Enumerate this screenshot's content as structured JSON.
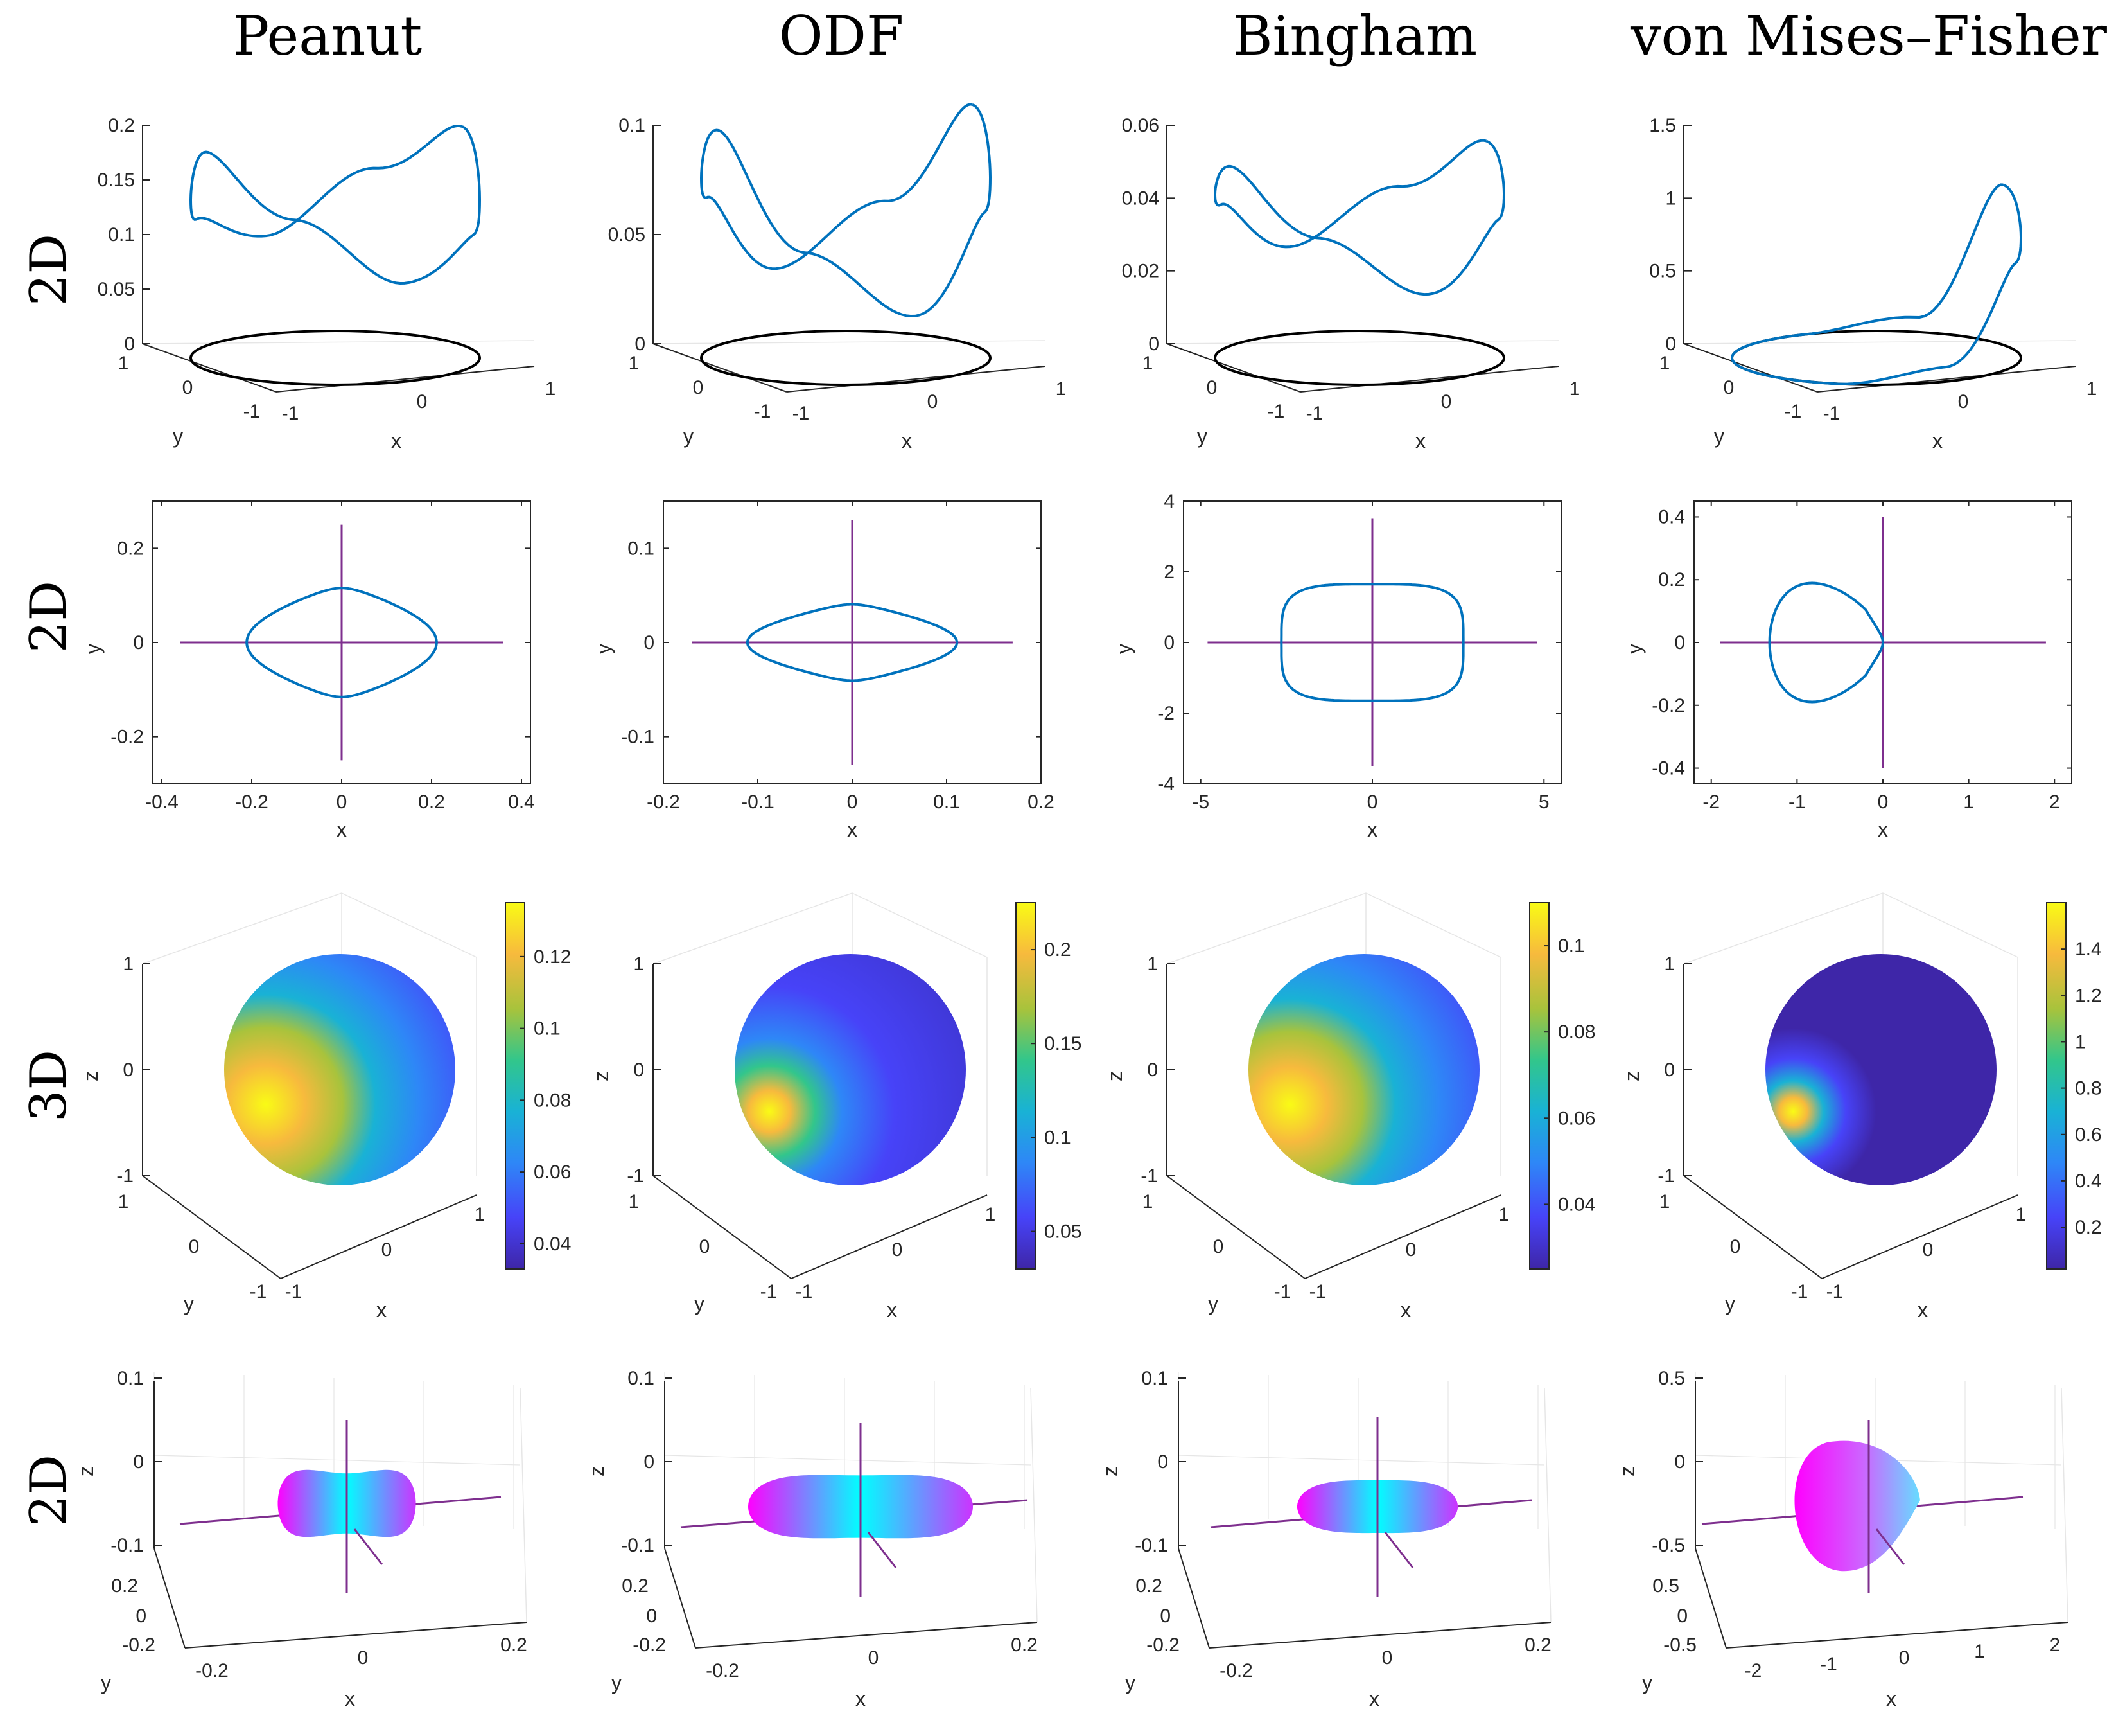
{
  "column_titles": [
    "Peanut",
    "ODF",
    "Bingham",
    "von Mises–Fisher"
  ],
  "row_titles": [
    "2D",
    "2D",
    "3D",
    "2D"
  ],
  "colors": {
    "curve": "#0072BD",
    "circle": "#000000",
    "axis_lines": "#7E2F8E",
    "axes": "#262626",
    "grid": "#e6e6e6",
    "colormap": [
      "#3e26a8",
      "#4743f8",
      "#2e87f7",
      "#19b2d5",
      "#32c68b",
      "#a8c33c",
      "#f7ba3d",
      "#f9fb15"
    ],
    "surface_gradient": [
      "#ff00ff",
      "#00ffff",
      "#ff00ff"
    ]
  },
  "chart_data": [
    {
      "type": "line",
      "row": 1,
      "panel": "peanut-3d-curve",
      "view": "3d",
      "xlabel": "x",
      "ylabel": "y",
      "x_ticks": [
        "-1",
        "0",
        "1"
      ],
      "y_ticks": [
        "-1",
        "0",
        "1"
      ],
      "z_ticks": [
        "0",
        "0.05",
        "0.1",
        "0.15",
        "0.2"
      ],
      "zlim": [
        0,
        0.2
      ],
      "series": [
        {
          "values": [
            0.2,
            0.15,
            0.09,
            0.12,
            0.2,
            0.15,
            0.09,
            0.12
          ]
        }
      ]
    },
    {
      "type": "line",
      "row": 1,
      "panel": "odf-3d-curve",
      "view": "3d",
      "xlabel": "x",
      "ylabel": "y",
      "x_ticks": [
        "-1",
        "0",
        "1"
      ],
      "y_ticks": [
        "-1",
        "0",
        "1"
      ],
      "z_ticks": [
        "0",
        "0.05",
        "0.1"
      ],
      "zlim": [
        0,
        0.1
      ],
      "series": [
        {
          "values": [
            0.11,
            0.06,
            0.03,
            0.07,
            0.11,
            0.06,
            0.03,
            0.07
          ]
        }
      ]
    },
    {
      "type": "line",
      "row": 1,
      "panel": "bingham-3d-curve",
      "view": "3d",
      "xlabel": "x",
      "ylabel": "y",
      "x_ticks": [
        "-1",
        "0",
        "1"
      ],
      "y_ticks": [
        "-1",
        "0",
        "1"
      ],
      "z_ticks": [
        "0",
        "0.02",
        "0.04",
        "0.06"
      ],
      "zlim": [
        0,
        0.06
      ],
      "series": [
        {
          "values": [
            0.056,
            0.04,
            0.024,
            0.04,
            0.056,
            0.04,
            0.024,
            0.04
          ]
        }
      ]
    },
    {
      "type": "line",
      "row": 1,
      "panel": "vmf-3d-curve",
      "view": "3d",
      "xlabel": "x",
      "ylabel": "y",
      "x_ticks": [
        "-1",
        "0",
        "1"
      ],
      "y_ticks": [
        "-1",
        "0",
        "1"
      ],
      "z_ticks": [
        "0",
        "0.5",
        "1",
        "1.5"
      ],
      "zlim": [
        0,
        1.5
      ],
      "series": [
        {
          "values": [
            1.1,
            0.1,
            0.0,
            0.0,
            0.0,
            0.0,
            0.1,
            0.7
          ]
        }
      ]
    },
    {
      "type": "line",
      "row": 2,
      "panel": "peanut-polar",
      "xlabel": "x",
      "ylabel": "y",
      "xlim": [
        -0.42,
        0.42
      ],
      "ylim": [
        -0.3,
        0.3
      ],
      "x_ticks": [
        -0.4,
        -0.2,
        0,
        0.2,
        0.4
      ],
      "y_ticks": [
        -0.2,
        0,
        0.2
      ],
      "x_tick_labels": [
        "-0.4",
        "-0.2",
        "0",
        "0.2",
        "0.4"
      ],
      "y_tick_labels": [
        "-0.2",
        "0",
        "0.2"
      ],
      "axis_half_length": [
        0.36,
        0.25
      ],
      "shape_c": [
        0.107,
        0.1
      ],
      "shape_offset": 0
    },
    {
      "type": "line",
      "row": 2,
      "panel": "odf-polar",
      "xlabel": "x",
      "ylabel": "y",
      "xlim": [
        -0.2,
        0.2
      ],
      "ylim": [
        -0.15,
        0.15
      ],
      "x_ticks": [
        -0.2,
        -0.1,
        0,
        0.1,
        0.2
      ],
      "y_ticks": [
        -0.1,
        0,
        0.1
      ],
      "x_tick_labels": [
        "-0.2",
        "-0.1",
        "0",
        "0.1",
        "0.2"
      ],
      "y_tick_labels": [
        "-0.1",
        "0",
        "0.1"
      ],
      "axis_half_length": [
        0.17,
        0.13
      ],
      "shape_c": [
        0.052,
        0.059
      ],
      "shape_offset": 0
    },
    {
      "type": "line",
      "row": 2,
      "panel": "bingham-polar",
      "xlabel": "x",
      "ylabel": "y",
      "xlim": [
        -5.5,
        5.5
      ],
      "ylim": [
        -4,
        4
      ],
      "x_ticks": [
        -5,
        0,
        5
      ],
      "y_ticks": [
        -4,
        -2,
        0,
        2,
        4
      ],
      "x_tick_labels": [
        "-5",
        "0",
        "5"
      ],
      "y_tick_labels": [
        "-4",
        "-2",
        "0",
        "2",
        "4"
      ],
      "axis_half_length": [
        4.8,
        3.5
      ],
      "shape_c": [
        2.1,
        0.6
      ],
      "shape_offset": 0
    },
    {
      "type": "line",
      "row": 2,
      "panel": "vmf-polar",
      "xlabel": "x",
      "ylabel": "y",
      "xlim": [
        -2.2,
        2.2
      ],
      "ylim": [
        -0.45,
        0.45
      ],
      "x_ticks": [
        -2,
        -1,
        0,
        1,
        2
      ],
      "y_ticks": [
        -0.4,
        -0.2,
        0,
        0.2,
        0.4
      ],
      "x_tick_labels": [
        "-2",
        "-1",
        "0",
        "1",
        "2"
      ],
      "y_tick_labels": [
        "-0.4",
        "-0.2",
        "0",
        "0.2",
        "0.4"
      ],
      "axis_half_length": [
        1.9,
        0.4
      ],
      "shape_c": [
        0.65,
        0.22
      ],
      "shape_offset": -0.65
    },
    {
      "type": "heatmap",
      "row": 3,
      "panel": "peanut-sphere",
      "view": "3d",
      "xlabel": "x",
      "ylabel": "y",
      "zlabel": "z",
      "z_ticks": [
        "-1",
        "0",
        "1"
      ],
      "x_ticks": [
        "-1",
        "0",
        "1"
      ],
      "y_ticks": [
        "-1",
        "0",
        "1"
      ],
      "colorbar_ticks": [
        0.04,
        0.06,
        0.08,
        0.1,
        0.12
      ],
      "colorbar_tick_labels": [
        "0.04",
        "0.06",
        "0.08",
        "0.1",
        "0.12"
      ],
      "colorbar_range": [
        0.033,
        0.135
      ]
    },
    {
      "type": "heatmap",
      "row": 3,
      "panel": "odf-sphere",
      "view": "3d",
      "xlabel": "x",
      "ylabel": "y",
      "zlabel": "z",
      "z_ticks": [
        "-1",
        "0",
        "1"
      ],
      "x_ticks": [
        "-1",
        "0",
        "1"
      ],
      "y_ticks": [
        "-1",
        "0",
        "1"
      ],
      "colorbar_ticks": [
        0.05,
        0.1,
        0.15,
        0.2
      ],
      "colorbar_tick_labels": [
        "0.05",
        "0.1",
        "0.15",
        "0.2"
      ],
      "colorbar_range": [
        0.03,
        0.225
      ]
    },
    {
      "type": "heatmap",
      "row": 3,
      "panel": "bingham-sphere",
      "view": "3d",
      "xlabel": "x",
      "ylabel": "y",
      "zlabel": "z",
      "z_ticks": [
        "-1",
        "0",
        "1"
      ],
      "x_ticks": [
        "-1",
        "0",
        "1"
      ],
      "y_ticks": [
        "-1",
        "0",
        "1"
      ],
      "colorbar_ticks": [
        0.04,
        0.06,
        0.08,
        0.1
      ],
      "colorbar_tick_labels": [
        "0.04",
        "0.06",
        "0.08",
        "0.1"
      ],
      "colorbar_range": [
        0.025,
        0.11
      ]
    },
    {
      "type": "heatmap",
      "row": 3,
      "panel": "vmf-sphere",
      "view": "3d",
      "xlabel": "x",
      "ylabel": "y",
      "zlabel": "z",
      "z_ticks": [
        "-1",
        "0",
        "1"
      ],
      "x_ticks": [
        "-1",
        "0",
        "1"
      ],
      "y_ticks": [
        "-1",
        "0",
        "1"
      ],
      "colorbar_ticks": [
        0.2,
        0.4,
        0.6,
        0.8,
        1,
        1.2,
        1.4
      ],
      "colorbar_tick_labels": [
        "0.2",
        "0.4",
        "0.6",
        "0.8",
        "1",
        "1.2",
        "1.4"
      ],
      "colorbar_range": [
        0.02,
        1.6
      ]
    },
    {
      "type": "area",
      "row": 4,
      "panel": "peanut-surface",
      "view": "3d",
      "xlabel": "x",
      "ylabel": "y",
      "zlabel": "z",
      "z_ticks": [
        "-0.1",
        "0",
        "0.1"
      ],
      "y_ticks": [
        "-0.2",
        "0",
        "0.2"
      ],
      "x_ticks": [
        "-0.2",
        "0",
        "0.2"
      ]
    },
    {
      "type": "area",
      "row": 4,
      "panel": "odf-surface",
      "view": "3d",
      "xlabel": "x",
      "ylabel": "y",
      "zlabel": "z",
      "z_ticks": [
        "-0.1",
        "0",
        "0.1"
      ],
      "y_ticks": [
        "-0.2",
        "0",
        "0.2"
      ],
      "x_ticks": [
        "-0.2",
        "0",
        "0.2"
      ]
    },
    {
      "type": "area",
      "row": 4,
      "panel": "bingham-surface",
      "view": "3d",
      "xlabel": "x",
      "ylabel": "y",
      "zlabel": "z",
      "z_ticks": [
        "-0.1",
        "0",
        "0.1"
      ],
      "y_ticks": [
        "-0.2",
        "0",
        "0.2"
      ],
      "x_ticks": [
        "-0.2",
        "0",
        "0.2"
      ]
    },
    {
      "type": "area",
      "row": 4,
      "panel": "vmf-surface",
      "view": "3d",
      "xlabel": "x",
      "ylabel": "y",
      "zlabel": "z",
      "z_ticks": [
        "-0.5",
        "0",
        "0.5"
      ],
      "y_ticks": [
        "-0.5",
        "0",
        "0.5"
      ],
      "x_ticks": [
        "-2",
        "-1",
        "0",
        "1",
        "2"
      ]
    }
  ]
}
